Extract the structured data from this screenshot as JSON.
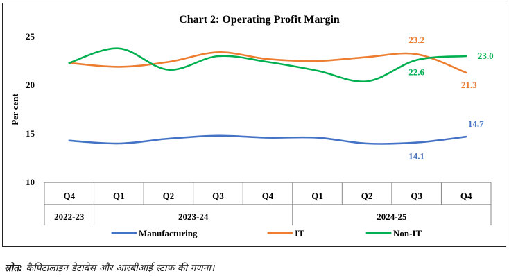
{
  "chart_data": {
    "type": "line",
    "title": "Chart 2: Operating Profit Margin",
    "ylabel": "Per cent",
    "xlabel": "",
    "ylim": [
      10,
      25
    ],
    "yticks": [
      10,
      15,
      20,
      25
    ],
    "grid": false,
    "legend_position": "bottom",
    "categories": [
      "Q4",
      "Q1",
      "Q2",
      "Q3",
      "Q4",
      "Q1",
      "Q2",
      "Q3",
      "Q4"
    ],
    "groups": [
      {
        "label": "2022-23",
        "start": 0,
        "end": 0
      },
      {
        "label": "2023-24",
        "start": 1,
        "end": 4
      },
      {
        "label": "2024-25",
        "start": 5,
        "end": 8
      }
    ],
    "series": [
      {
        "name": "Manufacturing",
        "color": "#4472C4",
        "values": [
          14.3,
          14.0,
          14.5,
          14.8,
          14.6,
          14.6,
          14.0,
          14.1,
          14.7
        ]
      },
      {
        "name": "IT",
        "color": "#ED7D31",
        "values": [
          22.3,
          21.9,
          22.4,
          23.4,
          22.7,
          22.5,
          22.9,
          23.2,
          21.3
        ]
      },
      {
        "name": "Non-IT",
        "color": "#00B050",
        "values": [
          22.3,
          23.8,
          21.6,
          23.0,
          22.4,
          21.5,
          20.4,
          22.6,
          23.0
        ]
      }
    ],
    "data_labels": [
      {
        "series": 1,
        "index": 7,
        "text": "23.2"
      },
      {
        "series": 1,
        "index": 8,
        "text": "21.3"
      },
      {
        "series": 2,
        "index": 7,
        "text": "22.6"
      },
      {
        "series": 2,
        "index": 8,
        "text": "23.0"
      },
      {
        "series": 0,
        "index": 7,
        "text": "14.1"
      },
      {
        "series": 0,
        "index": 8,
        "text": "14.7"
      }
    ]
  },
  "source": {
    "label": "स्रोत:",
    "text": "कैपिटालाइन डेटाबेस और आरबीआई स्टाफ की गणना।"
  }
}
